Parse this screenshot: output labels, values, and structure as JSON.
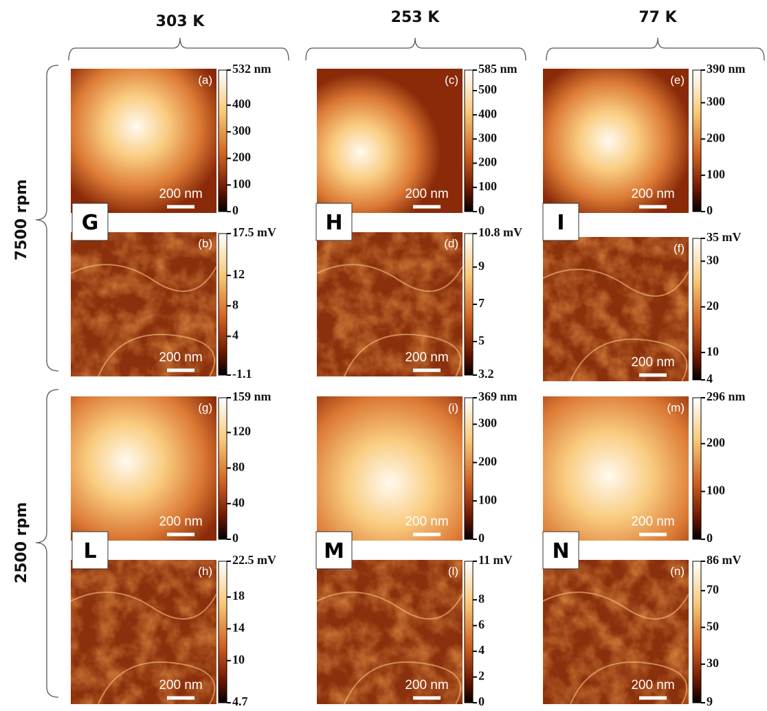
{
  "columns": [
    "303 K",
    "253 K",
    "77 K"
  ],
  "rows": [
    "7500 rpm",
    "2500 rpm"
  ],
  "letters": [
    "G",
    "H",
    "I",
    "L",
    "M",
    "N"
  ],
  "panels": [
    {
      "label": "(a)",
      "scale": "200 nm",
      "ticks": [
        "532 nm",
        "400",
        "300",
        "200",
        "100",
        "0"
      ]
    },
    {
      "label": "(c)",
      "scale": "200 nm",
      "ticks": [
        "585 nm",
        "500",
        "400",
        "300",
        "200",
        "100",
        "0"
      ]
    },
    {
      "label": "(e)",
      "scale": "200 nm",
      "ticks": [
        "390 nm",
        "300",
        "200",
        "100",
        "0"
      ]
    },
    {
      "label": "(b)",
      "scale": "200 nm",
      "ticks": [
        "17.5 mV",
        "12",
        "8",
        "4",
        "-1.1"
      ]
    },
    {
      "label": "(d)",
      "scale": "200 nm",
      "ticks": [
        "10.8 mV",
        "9",
        "7",
        "5",
        "3.2"
      ]
    },
    {
      "label": "(f)",
      "scale": "200 nm",
      "ticks": [
        "35 mV",
        "30",
        "20",
        "10",
        "4"
      ]
    },
    {
      "label": "(g)",
      "scale": "200 nm",
      "ticks": [
        "159 nm",
        "120",
        "80",
        "40",
        "0"
      ]
    },
    {
      "label": "(i)",
      "scale": "200 nm",
      "ticks": [
        "369 nm",
        "300",
        "200",
        "100",
        "0"
      ]
    },
    {
      "label": "(m)",
      "scale": "200 nm",
      "ticks": [
        "296 nm",
        "200",
        "100",
        "0"
      ]
    },
    {
      "label": "(h)",
      "scale": "200 nm",
      "ticks": [
        "22.5 mV",
        "18",
        "14",
        "10",
        "4.7"
      ]
    },
    {
      "label": "(l)",
      "scale": "200 nm",
      "ticks": [
        "11 mV",
        "8",
        "6",
        "4",
        "2",
        "0"
      ]
    },
    {
      "label": "(n)",
      "scale": "200 nm",
      "ticks": [
        "86 mV",
        "70",
        "50",
        "30",
        "9"
      ]
    }
  ]
}
